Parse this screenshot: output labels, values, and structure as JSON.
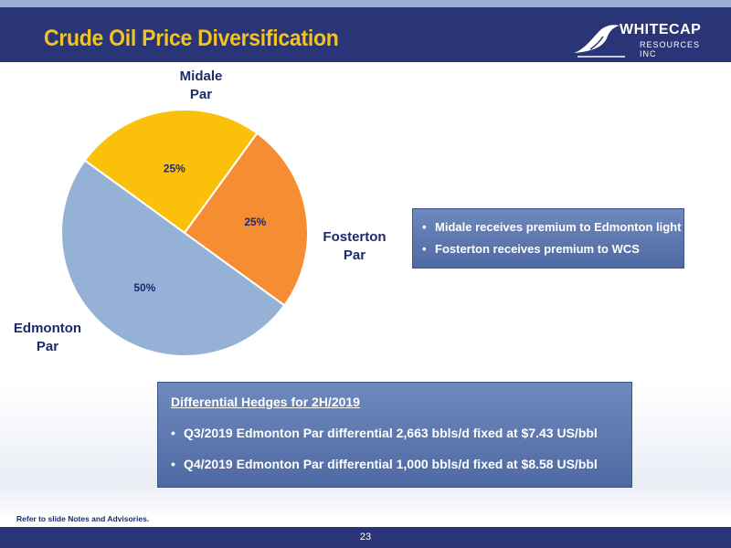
{
  "header": {
    "title": "Crude Oil Price Diversification"
  },
  "logo": {
    "line1": "WHITECAP",
    "line2": "RESOURCES INC",
    "icon": "wave-logo-icon"
  },
  "chart_data": {
    "type": "pie",
    "slices": [
      {
        "label": "Midale Par",
        "label_lines": [
          "Midale",
          "Par"
        ],
        "value": 25,
        "value_label": "25%",
        "color": "#fbc00a"
      },
      {
        "label": "Fosterton Par",
        "label_lines": [
          "Fosterton",
          "Par"
        ],
        "value": 25,
        "value_label": "25%",
        "color": "#f68d33"
      },
      {
        "label": "Edmonton Par",
        "label_lines": [
          "Edmonton",
          "Par"
        ],
        "value": 50,
        "value_label": "50%",
        "color": "#95b1d6"
      }
    ]
  },
  "notes_box": {
    "items": [
      "Midale receives premium to Edmonton light",
      "Fosterton receives premium to WCS"
    ]
  },
  "hedges_box": {
    "heading": "Differential Hedges for 2H/2019",
    "items": [
      "Q3/2019 Edmonton Par differential 2,663 bbls/d fixed at $7.43 US/bbl",
      "Q4/2019 Edmonton Par differential 1,000 bbls/d fixed at $8.58 US/bbl"
    ]
  },
  "footnote": "Refer to slide Notes and Advisories.",
  "footer": {
    "page_number": "23"
  }
}
